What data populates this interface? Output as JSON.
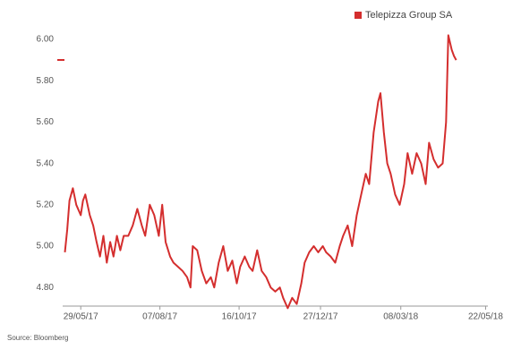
{
  "chart_data": {
    "type": "line",
    "source": "Source: Bloomberg",
    "legend_position": "top-right",
    "x": [
      "15/05/17",
      "17/05/17",
      "19/05/17",
      "22/05/17",
      "25/05/17",
      "29/05/17",
      "31/05/17",
      "02/06/17",
      "06/06/17",
      "09/06/17",
      "12/06/17",
      "15/06/17",
      "18/06/17",
      "21/06/17",
      "24/06/17",
      "27/06/17",
      "30/06/17",
      "03/07/17",
      "06/07/17",
      "10/07/17",
      "14/07/17",
      "18/07/17",
      "22/07/17",
      "25/07/17",
      "29/07/17",
      "02/08/17",
      "06/08/17",
      "09/08/17",
      "12/08/17",
      "16/08/17",
      "19/08/17",
      "23/08/17",
      "27/08/17",
      "31/08/17",
      "03/09/17",
      "05/09/17",
      "09/09/17",
      "13/09/17",
      "17/09/17",
      "21/09/17",
      "24/09/17",
      "28/09/17",
      "02/10/17",
      "06/10/17",
      "10/10/17",
      "14/10/17",
      "17/10/17",
      "21/10/17",
      "25/10/17",
      "28/10/17",
      "01/11/17",
      "05/11/17",
      "09/11/17",
      "13/11/17",
      "17/11/17",
      "21/11/17",
      "24/11/17",
      "28/11/17",
      "02/12/17",
      "06/12/17",
      "10/12/17",
      "13/12/17",
      "17/12/17",
      "21/12/17",
      "25/12/17",
      "29/12/17",
      "01/01/18",
      "05/01/18",
      "09/01/18",
      "13/01/18",
      "16/01/18",
      "20/01/18",
      "24/01/18",
      "28/01/18",
      "01/02/18",
      "05/02/18",
      "08/02/18",
      "12/02/18",
      "16/02/18",
      "18/02/18",
      "21/02/18",
      "24/02/18",
      "27/02/18",
      "03/03/18",
      "07/03/18",
      "11/03/18",
      "14/03/18",
      "18/03/18",
      "22/03/18",
      "26/03/18",
      "30/03/18",
      "02/04/18",
      "06/04/18",
      "10/04/18",
      "14/04/18",
      "17/04/18",
      "19/04/18",
      "22/04/18",
      "24/04/18",
      "26/04/18"
    ],
    "series": [
      {
        "name": "Telepizza Group SA",
        "color": "#d42e2e",
        "values": [
          4.97,
          5.08,
          5.22,
          5.28,
          5.2,
          5.15,
          5.22,
          5.25,
          5.15,
          5.1,
          5.02,
          4.95,
          5.05,
          4.92,
          5.02,
          4.95,
          5.05,
          4.98,
          5.05,
          5.05,
          5.1,
          5.18,
          5.1,
          5.05,
          5.2,
          5.15,
          5.05,
          5.2,
          5.02,
          4.95,
          4.92,
          4.9,
          4.88,
          4.85,
          4.8,
          5.0,
          4.98,
          4.88,
          4.82,
          4.85,
          4.8,
          4.92,
          5.0,
          4.88,
          4.93,
          4.82,
          4.9,
          4.95,
          4.9,
          4.88,
          4.98,
          4.88,
          4.85,
          4.8,
          4.78,
          4.8,
          4.75,
          4.7,
          4.75,
          4.72,
          4.82,
          4.92,
          4.97,
          5.0,
          4.97,
          5.0,
          4.97,
          4.95,
          4.92,
          5.0,
          5.05,
          5.1,
          5.0,
          5.15,
          5.25,
          5.35,
          5.3,
          5.55,
          5.7,
          5.74,
          5.55,
          5.4,
          5.35,
          5.25,
          5.2,
          5.3,
          5.45,
          5.35,
          5.45,
          5.4,
          5.3,
          5.5,
          5.42,
          5.38,
          5.4,
          5.6,
          6.02,
          5.95,
          5.92,
          5.9
        ]
      }
    ],
    "xlim": [
      "13/05/17",
      "24/05/18"
    ],
    "xticks": [
      "29/05/17",
      "07/08/17",
      "16/10/17",
      "27/12/17",
      "08/03/18",
      "22/05/18"
    ],
    "ylim": [
      4.71,
      6.05
    ],
    "yticks": [
      {
        "value": 4.8,
        "label": "4.80"
      },
      {
        "value": 5,
        "label": "5.00"
      },
      {
        "value": 5.2,
        "label": "5.20"
      },
      {
        "value": 5.4,
        "label": "5.40"
      },
      {
        "value": 5.6,
        "label": "5.60"
      },
      {
        "value": 5.8,
        "label": "5.80"
      },
      {
        "value": 6,
        "label": "6.00"
      }
    ],
    "grid": false
  }
}
